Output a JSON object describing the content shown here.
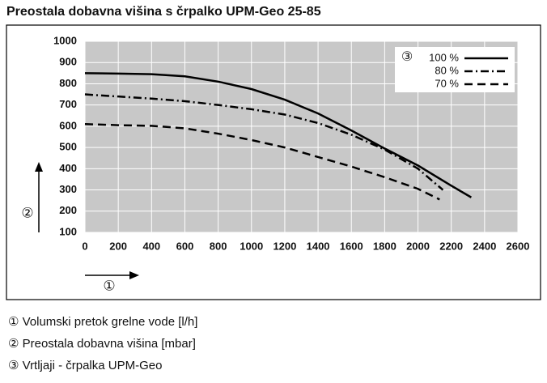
{
  "chart_data": {
    "type": "line",
    "title": "Preostala dobavna višina s črpalko UPM-Geo 25-85",
    "xlim": [
      0,
      2600
    ],
    "xticks": [
      0,
      200,
      400,
      600,
      800,
      1000,
      1200,
      1400,
      1600,
      1800,
      2000,
      2200,
      2400,
      2600
    ],
    "ylim": [
      100,
      1000
    ],
    "yticks": [
      100,
      200,
      300,
      400,
      500,
      600,
      700,
      800,
      900,
      1000
    ],
    "grid": true,
    "legend_marker": "③",
    "x_marker": "①",
    "y_marker": "②",
    "series": [
      {
        "name": "100 %",
        "color": "#000000",
        "style": "solid",
        "x": [
          0,
          200,
          400,
          600,
          800,
          1000,
          1200,
          1400,
          1600,
          1800,
          2000,
          2200,
          2320
        ],
        "values": [
          850,
          848,
          845,
          835,
          810,
          775,
          725,
          660,
          580,
          495,
          415,
          320,
          265
        ]
      },
      {
        "name": "80 %",
        "color": "#000000",
        "style": "dashdot",
        "x": [
          0,
          200,
          400,
          600,
          800,
          1000,
          1200,
          1400,
          1600,
          1800,
          2000,
          2150
        ],
        "values": [
          750,
          740,
          730,
          718,
          700,
          680,
          655,
          615,
          560,
          490,
          400,
          300
        ]
      },
      {
        "name": "70 %",
        "color": "#000000",
        "style": "dash",
        "x": [
          0,
          200,
          400,
          600,
          800,
          1000,
          1200,
          1400,
          1600,
          1800,
          2000,
          2130
        ],
        "values": [
          610,
          605,
          602,
          590,
          565,
          535,
          500,
          455,
          410,
          360,
          305,
          255
        ]
      }
    ],
    "footnotes": [
      "① Volumski pretok grelne vode [l/h]",
      "② Preostala dobavna višina [mbar]",
      "③ Vrtljaji - črpalka UPM-Geo"
    ]
  }
}
